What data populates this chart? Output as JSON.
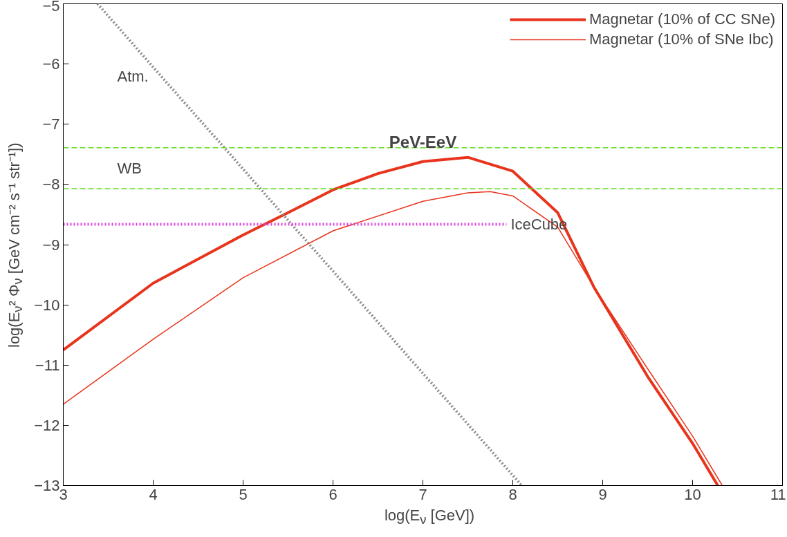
{
  "chart_data": {
    "type": "line",
    "xlabel": "log(E$_{ν}$ [GeV])",
    "ylabel": "log(E$_{ν}$² Φ$_{ν}$ [GeV cm⁻² s⁻¹ str⁻¹])",
    "xlim": [
      3,
      11
    ],
    "ylim": [
      -13,
      -5
    ],
    "xticks": [
      3,
      4,
      5,
      6,
      7,
      8,
      9,
      10,
      11
    ],
    "yticks": [
      -13,
      -12,
      -11,
      -10,
      -9,
      -8,
      -7,
      -6,
      -5
    ],
    "grid": false,
    "legend": "top right",
    "marker": "none",
    "series": [
      {
        "name": "Magnetar (10% of CC SNe)",
        "color": "#e8341c",
        "line_style": "solid",
        "x": [
          3,
          4,
          5,
          5.5,
          6,
          6.5,
          7,
          7.5,
          8,
          8.5,
          8.9,
          9.5,
          10,
          10.28
        ],
        "values": [
          -10.75,
          -9.64,
          -8.84,
          -8.47,
          -8.09,
          -7.82,
          -7.62,
          -7.55,
          -7.78,
          -8.47,
          -9.7,
          -11.19,
          -12.3,
          -13
        ]
      },
      {
        "name": "Magnetar (10% of SNe Ibc)",
        "color": "#e8341c",
        "line_style": "solid",
        "x": [
          3,
          4,
          5,
          6,
          7,
          7.5,
          7.75,
          8,
          8.5,
          8.9,
          9.5,
          10,
          10.33
        ],
        "values": [
          -11.65,
          -10.57,
          -9.55,
          -8.77,
          -8.28,
          -8.14,
          -8.12,
          -8.19,
          -8.71,
          -9.7,
          -11.06,
          -12.18,
          -13
        ]
      },
      {
        "type": "line",
        "color": "#888888",
        "line_style": "dotted",
        "x": [
          3.38,
          8.1
        ],
        "values": [
          -5,
          -13
        ]
      },
      {
        "type": "line",
        "color": "#e040e0",
        "line_style": "dotted",
        "x": [
          3,
          7.93
        ],
        "values": [
          -8.66,
          -8.66
        ]
      }
    ],
    "ref_lines": [
      {
        "axis": "y",
        "value": -7.39,
        "color": "#66dd22",
        "line_style": "dashed"
      },
      {
        "axis": "y",
        "value": -8.07,
        "color": "#66dd22",
        "line_style": "dashed"
      }
    ],
    "annotations": [
      "Atm.",
      "WB",
      "PeV-EeV",
      {
        "text": "IceCube",
        "x": 7.93,
        "y": -8.66
      }
    ]
  }
}
